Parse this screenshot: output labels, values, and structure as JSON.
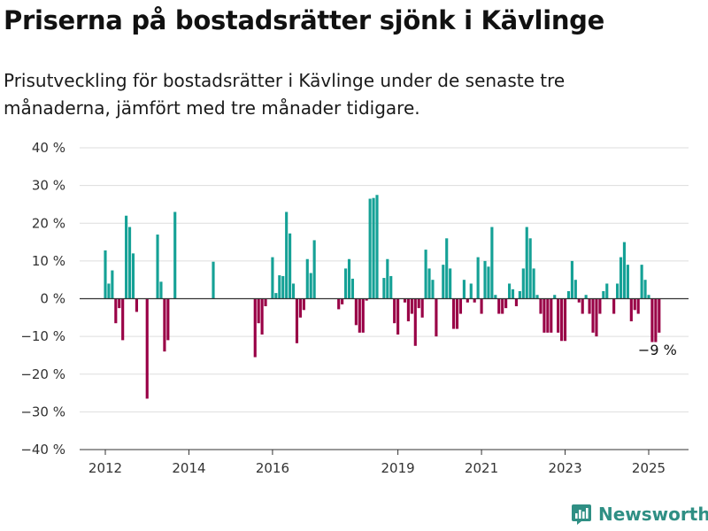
{
  "title": "Priserna på bostadsrätter sjönk i Kävlinge",
  "subtitle": "Prisutveckling för bostadsrätter i Kävlinge under de senaste tre månaderna, jämfört med tre månader tidigare.",
  "brand": {
    "name": "Newsworthy",
    "color": "#2f8f84",
    "icon": "bar-chart-logo-icon"
  },
  "colors": {
    "positive": "#15a196",
    "negative": "#990046",
    "grid": "#dddddd",
    "axis": "#333333"
  },
  "chart_data": {
    "type": "bar",
    "x_type": "date",
    "ylim": [
      -40,
      40
    ],
    "yticks": [
      40,
      30,
      20,
      10,
      0,
      -10,
      -20,
      -30,
      -40
    ],
    "ytick_labels": [
      "40 %",
      "30 %",
      "20 %",
      "10 %",
      "0 %",
      "−10 %",
      "−20 %",
      "−30 %",
      "−40 %"
    ],
    "xticks": [
      {
        "date": "2012-01",
        "label": "2012"
      },
      {
        "date": "2014-01",
        "label": "2014"
      },
      {
        "date": "2016-01",
        "label": "2016"
      },
      {
        "date": "2019-01",
        "label": "2019"
      },
      {
        "date": "2021-01",
        "label": "2021"
      },
      {
        "date": "2023-01",
        "label": "2023"
      },
      {
        "date": "2025-01",
        "label": "2025"
      }
    ],
    "grid": true,
    "annotation": {
      "text": "−9 %",
      "date": "2025-03"
    },
    "points": [
      [
        "2012-01",
        12.8
      ],
      [
        "2012-02",
        4
      ],
      [
        "2012-03",
        7.5
      ],
      [
        "2012-04",
        -6.5
      ],
      [
        "2012-05",
        -2.5
      ],
      [
        "2012-06",
        -11
      ],
      [
        "2012-07",
        22
      ],
      [
        "2012-08",
        19
      ],
      [
        "2012-09",
        12
      ],
      [
        "2012-10",
        -3.5
      ],
      [
        "2013-01",
        -26.5
      ],
      [
        "2013-04",
        17
      ],
      [
        "2013-05",
        4.5
      ],
      [
        "2013-06",
        -14
      ],
      [
        "2013-07",
        -11
      ],
      [
        "2013-09",
        23
      ],
      [
        "2014-08",
        9.8
      ],
      [
        "2015-08",
        -15.5
      ],
      [
        "2015-09",
        -6.5
      ],
      [
        "2015-10",
        -9.5
      ],
      [
        "2015-11",
        -2
      ],
      [
        "2016-01",
        11
      ],
      [
        "2016-02",
        1.5
      ],
      [
        "2016-03",
        6.2
      ],
      [
        "2016-04",
        6
      ],
      [
        "2016-05",
        23
      ],
      [
        "2016-06",
        17.3
      ],
      [
        "2016-07",
        4
      ],
      [
        "2016-08",
        -11.8
      ],
      [
        "2016-09",
        -5
      ],
      [
        "2016-10",
        -3
      ],
      [
        "2016-11",
        10.5
      ],
      [
        "2016-12",
        6.8
      ],
      [
        "2017-01",
        15.5
      ],
      [
        "2017-08",
        -2.8
      ],
      [
        "2017-09",
        -1.5
      ],
      [
        "2017-10",
        8
      ],
      [
        "2017-11",
        10.5
      ],
      [
        "2017-12",
        5.3
      ],
      [
        "2018-01",
        -7
      ],
      [
        "2018-02",
        -9
      ],
      [
        "2018-03",
        -9
      ],
      [
        "2018-04",
        -0.5
      ],
      [
        "2018-05",
        26.5
      ],
      [
        "2018-06",
        26.7
      ],
      [
        "2018-07",
        27.5
      ],
      [
        "2018-09",
        5.5
      ],
      [
        "2018-10",
        10.5
      ],
      [
        "2018-11",
        6
      ],
      [
        "2018-12",
        -6.5
      ],
      [
        "2019-01",
        -9.5
      ],
      [
        "2019-03",
        -1
      ],
      [
        "2019-04",
        -6
      ],
      [
        "2019-05",
        -4
      ],
      [
        "2019-06",
        -12.5
      ],
      [
        "2019-07",
        -2.5
      ],
      [
        "2019-08",
        -5
      ],
      [
        "2019-09",
        13
      ],
      [
        "2019-10",
        8
      ],
      [
        "2019-11",
        5
      ],
      [
        "2019-12",
        -10
      ],
      [
        "2020-02",
        9
      ],
      [
        "2020-03",
        16
      ],
      [
        "2020-04",
        8
      ],
      [
        "2020-05",
        -8
      ],
      [
        "2020-06",
        -8
      ],
      [
        "2020-07",
        -4
      ],
      [
        "2020-08",
        5
      ],
      [
        "2020-09",
        -1
      ],
      [
        "2020-10",
        4
      ],
      [
        "2020-11",
        -1
      ],
      [
        "2020-12",
        11
      ],
      [
        "2021-01",
        -4
      ],
      [
        "2021-02",
        10
      ],
      [
        "2021-03",
        8.5
      ],
      [
        "2021-04",
        19
      ],
      [
        "2021-05",
        1
      ],
      [
        "2021-06",
        -4
      ],
      [
        "2021-07",
        -4
      ],
      [
        "2021-08",
        -2.5
      ],
      [
        "2021-09",
        4
      ],
      [
        "2021-10",
        2.5
      ],
      [
        "2021-11",
        -2
      ],
      [
        "2021-12",
        2
      ],
      [
        "2022-01",
        8
      ],
      [
        "2022-02",
        19
      ],
      [
        "2022-03",
        16
      ],
      [
        "2022-04",
        8
      ],
      [
        "2022-05",
        1
      ],
      [
        "2022-06",
        -4
      ],
      [
        "2022-07",
        -9
      ],
      [
        "2022-08",
        -9
      ],
      [
        "2022-09",
        -9
      ],
      [
        "2022-10",
        1
      ],
      [
        "2022-11",
        -9
      ],
      [
        "2022-12",
        -11.2
      ],
      [
        "2023-01",
        -11.2
      ],
      [
        "2023-02",
        2
      ],
      [
        "2023-03",
        10
      ],
      [
        "2023-04",
        5
      ],
      [
        "2023-05",
        -1
      ],
      [
        "2023-06",
        -4
      ],
      [
        "2023-07",
        1
      ],
      [
        "2023-08",
        -4
      ],
      [
        "2023-09",
        -9
      ],
      [
        "2023-10",
        -10
      ],
      [
        "2023-11",
        -4
      ],
      [
        "2023-12",
        2
      ],
      [
        "2024-01",
        4
      ],
      [
        "2024-03",
        -4
      ],
      [
        "2024-04",
        4
      ],
      [
        "2024-05",
        11
      ],
      [
        "2024-06",
        15
      ],
      [
        "2024-07",
        9
      ],
      [
        "2024-08",
        -6
      ],
      [
        "2024-09",
        -3
      ],
      [
        "2024-10",
        -4
      ],
      [
        "2024-11",
        9
      ],
      [
        "2024-12",
        5
      ],
      [
        "2025-01",
        1
      ],
      [
        "2025-02",
        -11.5
      ],
      [
        "2025-03",
        -11.5
      ],
      [
        "2025-04",
        -9
      ]
    ]
  }
}
